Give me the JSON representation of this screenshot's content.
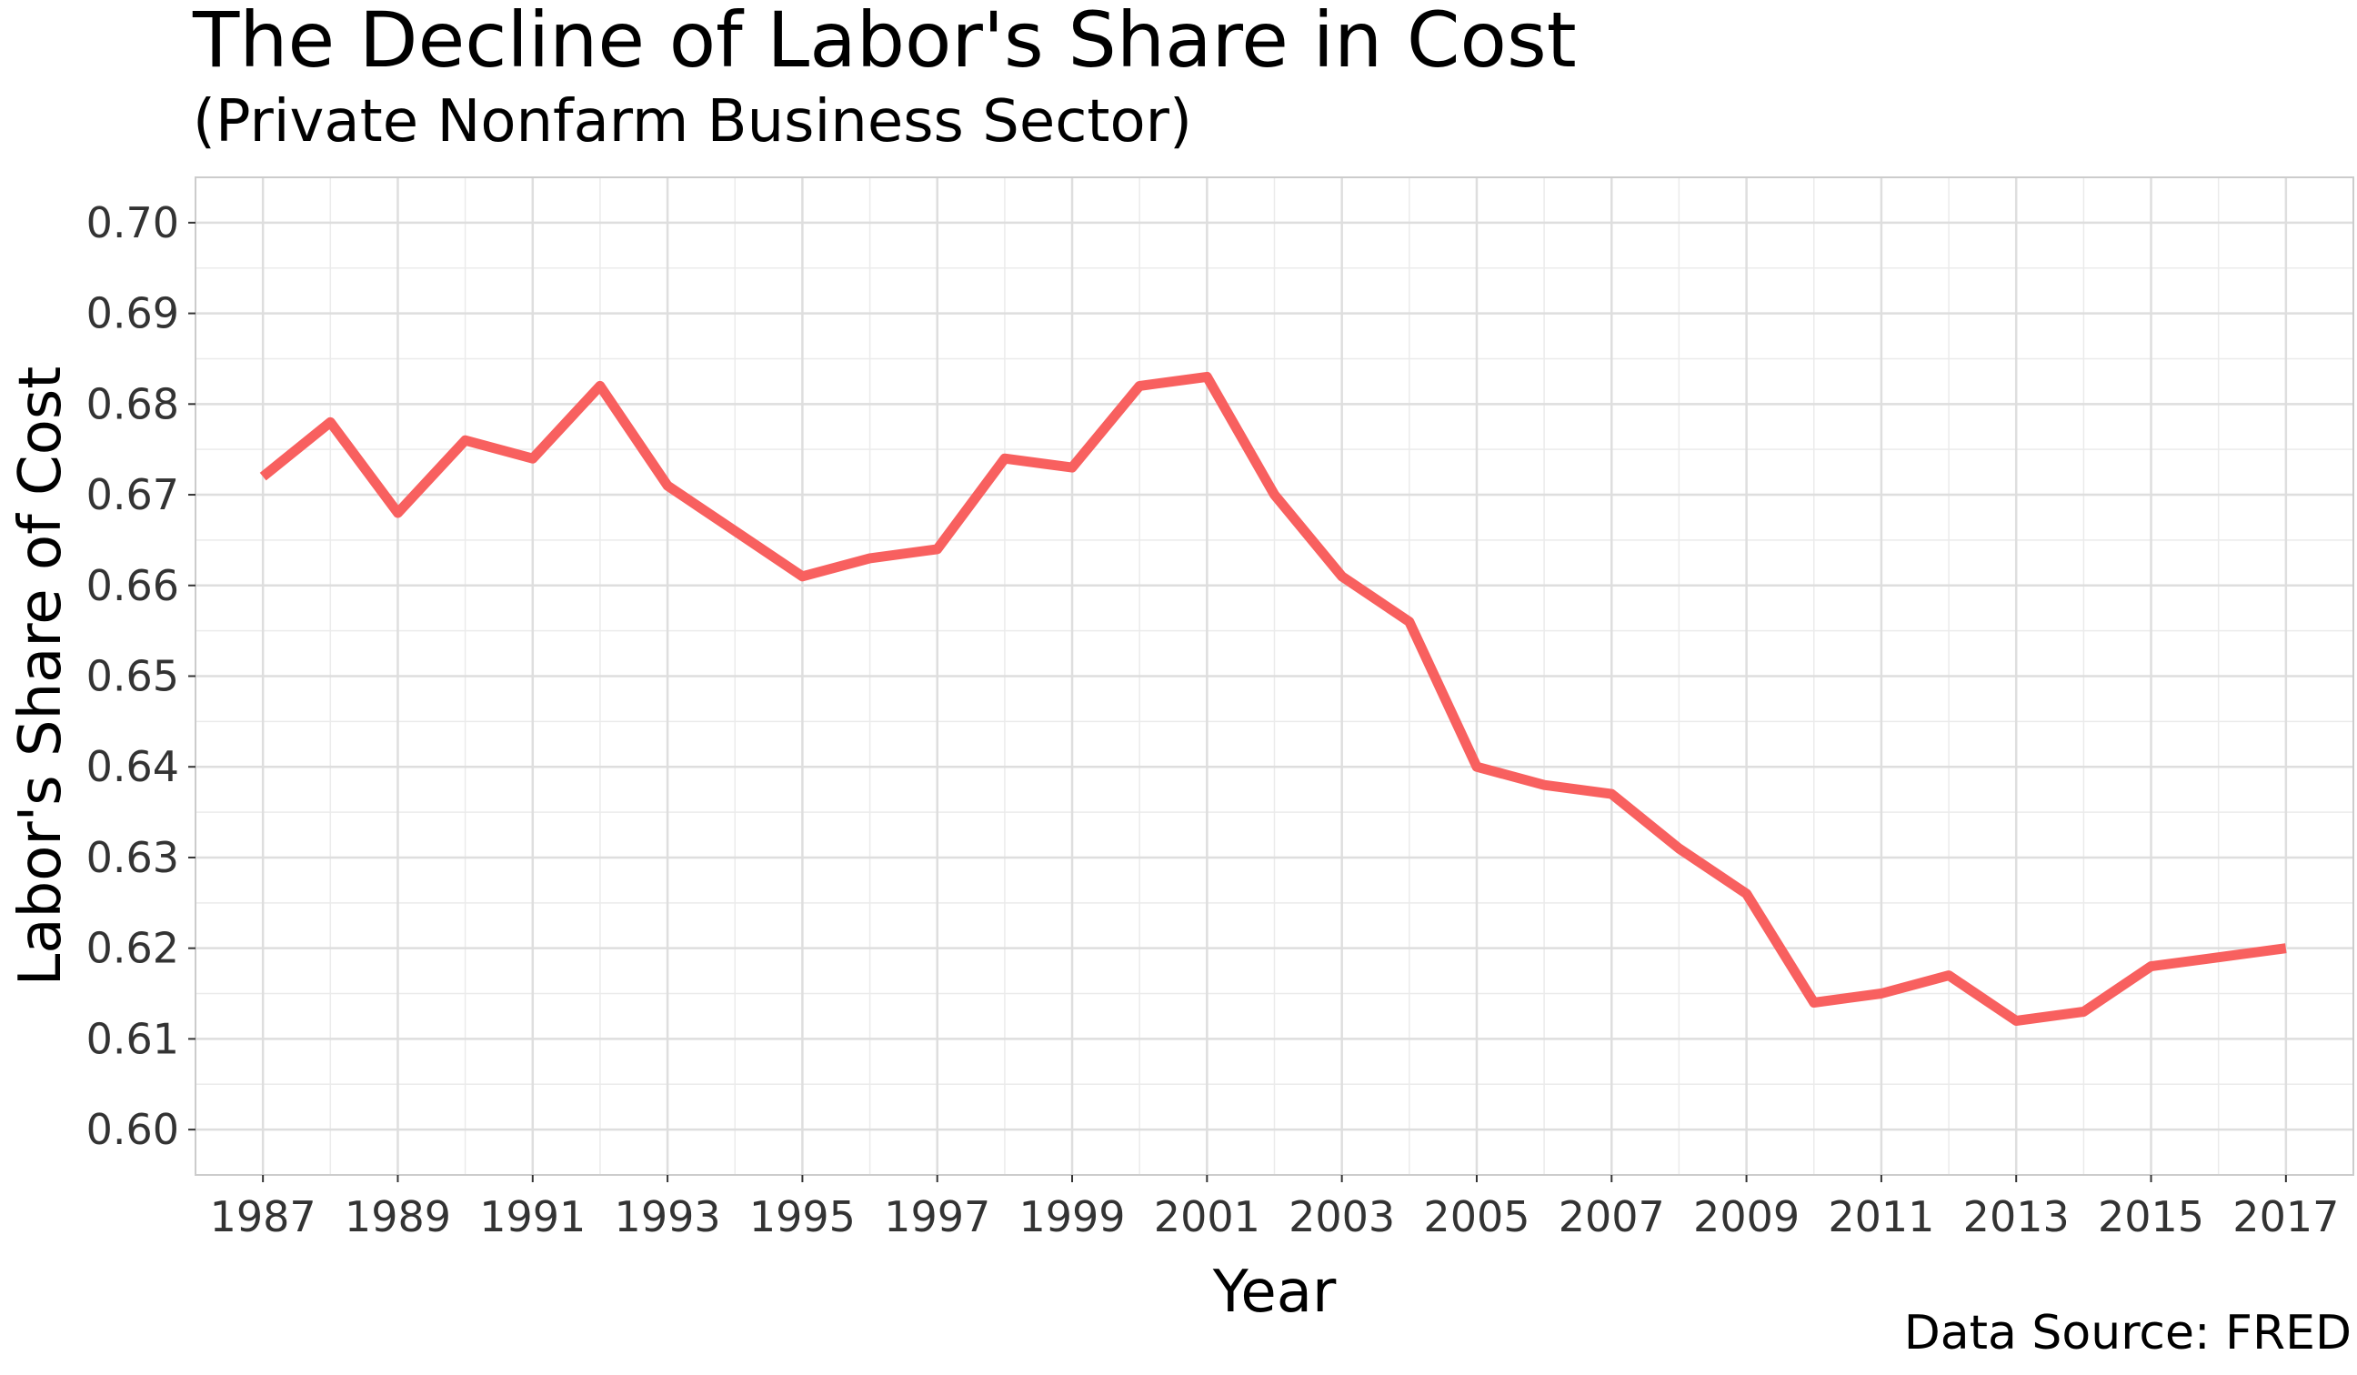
{
  "chart_data": {
    "type": "line",
    "title": "The Decline of Labor's Share in Cost",
    "subtitle": "(Private Nonfarm Business Sector)",
    "caption": "Data Source: FRED",
    "xlabel": "Year",
    "ylabel": "Labor's Share of Cost",
    "xlim": [
      1986,
      2018
    ],
    "ylim": [
      0.595,
      0.705
    ],
    "grid": true,
    "line_color": "#F8605F",
    "x_ticks": [
      1987,
      1989,
      1991,
      1993,
      1995,
      1997,
      1999,
      2001,
      2003,
      2005,
      2007,
      2009,
      2011,
      2013,
      2015,
      2017
    ],
    "x_tick_labels": [
      "1987",
      "1989",
      "1991",
      "1993",
      "1995",
      "1997",
      "1999",
      "2001",
      "2003",
      "2005",
      "2007",
      "2009",
      "2011",
      "2013",
      "2015",
      "2017"
    ],
    "y_ticks": [
      0.6,
      0.61,
      0.62,
      0.63,
      0.64,
      0.65,
      0.66,
      0.67,
      0.68,
      0.69,
      0.7
    ],
    "y_tick_labels": [
      "0.60",
      "0.61",
      "0.62",
      "0.63",
      "0.64",
      "0.65",
      "0.66",
      "0.67",
      "0.68",
      "0.69",
      "0.70"
    ],
    "x": [
      1987,
      1988,
      1989,
      1990,
      1991,
      1992,
      1993,
      1994,
      1995,
      1996,
      1997,
      1998,
      1999,
      2000,
      2001,
      2002,
      2003,
      2004,
      2005,
      2006,
      2007,
      2008,
      2009,
      2010,
      2011,
      2012,
      2013,
      2014,
      2015,
      2016,
      2017
    ],
    "values": [
      0.672,
      0.678,
      0.668,
      0.676,
      0.674,
      0.682,
      0.671,
      0.666,
      0.661,
      0.663,
      0.664,
      0.674,
      0.673,
      0.682,
      0.683,
      0.67,
      0.661,
      0.656,
      0.64,
      0.638,
      0.637,
      0.631,
      0.626,
      0.614,
      0.615,
      0.617,
      0.612,
      0.613,
      0.618,
      0.619,
      0.62
    ]
  }
}
